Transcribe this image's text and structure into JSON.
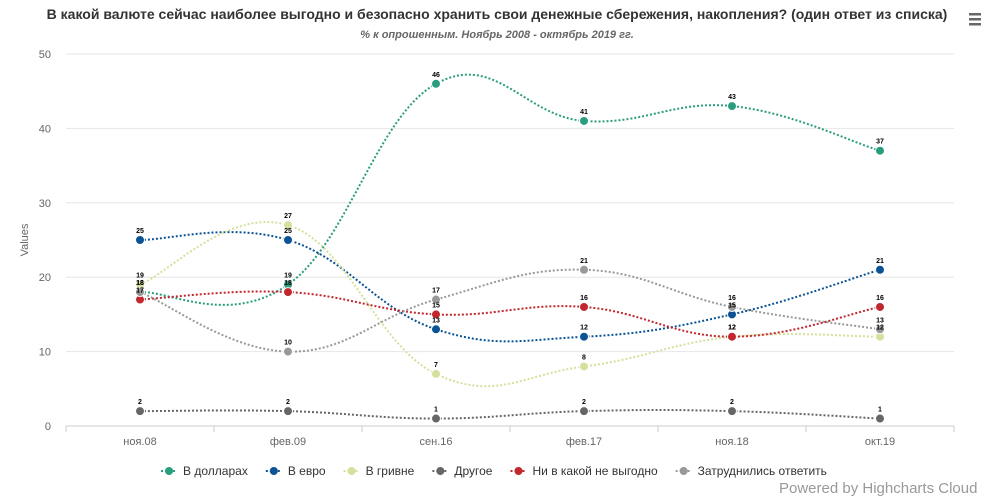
{
  "chart_data": {
    "type": "line",
    "title": "В какой валюте сейчас наиболее выгодно и безопасно хранить свои денежные сбережения, накопления? (один ответ из списка)",
    "subtitle": "% к опрошенным. Ноябрь 2008 - октябрь 2019 гг.",
    "ylabel": "Values",
    "xlabel": "",
    "ylim": [
      0,
      50
    ],
    "yticks": [
      0,
      10,
      20,
      30,
      40,
      50
    ],
    "categories": [
      "ноя.08",
      "фев.09",
      "сен.16",
      "фев.17",
      "ноя.18",
      "окт.19"
    ],
    "grid": true,
    "legend_position": "bottom",
    "series": [
      {
        "name": "В долларах",
        "color": "#2a9d7f",
        "values": [
          18,
          19,
          46,
          41,
          43,
          37
        ]
      },
      {
        "name": "В евро",
        "color": "#0b5394",
        "values": [
          25,
          25,
          13,
          12,
          15,
          21
        ]
      },
      {
        "name": "В гривне",
        "color": "#d4e09b",
        "values": [
          19,
          27,
          7,
          8,
          12,
          12
        ]
      },
      {
        "name": "Другое",
        "color": "#666666",
        "values": [
          2,
          2,
          1,
          2,
          2,
          1
        ]
      },
      {
        "name": "Ни в какой не выгодно",
        "color": "#c1272d",
        "values": [
          17,
          18,
          15,
          16,
          12,
          16
        ]
      },
      {
        "name": "Затруднились ответить",
        "color": "#999999",
        "values": [
          18,
          10,
          17,
          21,
          16,
          13
        ]
      }
    ]
  },
  "credits": "Powered by Highcharts Cloud",
  "menu_icon": "hamburger-menu-icon"
}
